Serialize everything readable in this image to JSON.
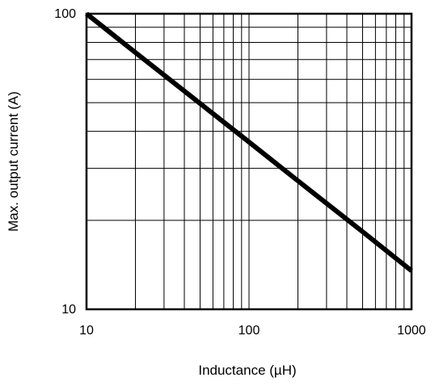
{
  "chart_data": {
    "type": "line",
    "title": "",
    "xlabel": "Inductance (µH)",
    "ylabel": "Max. output current (A)",
    "x_scale": "log",
    "y_scale": "log",
    "xlim": [
      10,
      1000
    ],
    "ylim": [
      10,
      100
    ],
    "x_ticks": [
      10,
      100,
      1000
    ],
    "x_tick_labels": [
      "10",
      "100",
      "1000"
    ],
    "y_ticks": [
      10,
      100
    ],
    "y_tick_labels": [
      "10",
      "100"
    ],
    "grid": true,
    "series": [
      {
        "x": [
          10,
          20,
          50,
          100,
          200,
          500,
          1000
        ],
        "y": [
          100,
          73.9,
          49.7,
          36.8,
          27.2,
          18.3,
          13.5
        ]
      }
    ],
    "colors": {
      "line": "#000000",
      "grid": "#000000",
      "background": "#ffffff"
    }
  }
}
